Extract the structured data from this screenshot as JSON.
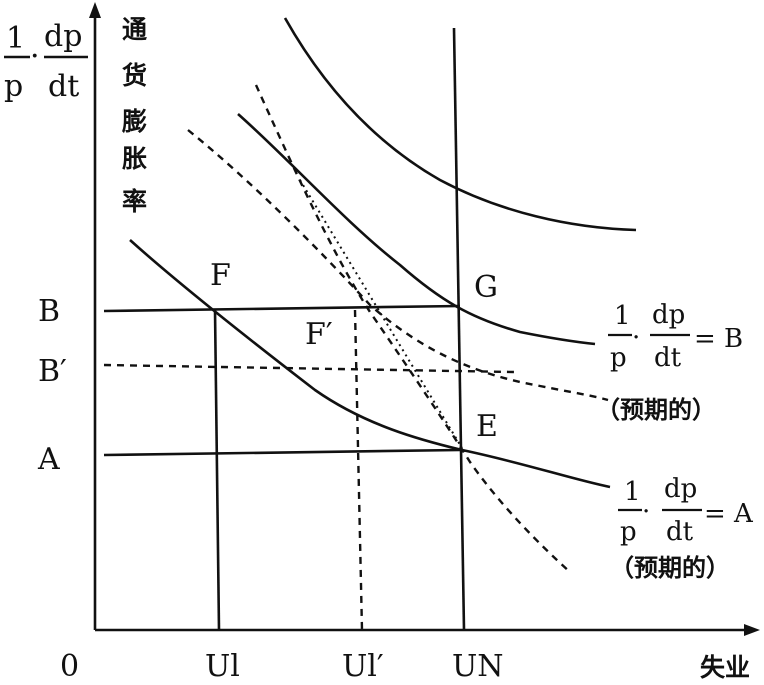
{
  "diagram": {
    "y_axis_label_fraction": {
      "num1": "1",
      "den1": "p",
      "dot": "·",
      "num2": "dp",
      "den2": "dt"
    },
    "y_axis_label_cn": [
      "通",
      "货",
      "膨",
      "胀",
      "率"
    ],
    "x_axis_label": "失业",
    "origin_label": "0",
    "y_ticks": [
      "B",
      "B′",
      "A"
    ],
    "x_ticks": [
      "Ul",
      "Ul′",
      "UN"
    ],
    "points": [
      "F",
      "G",
      "F′",
      "E"
    ],
    "curve_label_B": {
      "num": "1",
      "den": "p",
      "dot": "·",
      "dnum": "dp",
      "dden": "dt",
      "eq": "= B",
      "note": "（预期的）"
    },
    "curve_label_A": {
      "num": "1",
      "den": "p",
      "dot": "·",
      "dnum": "dp",
      "dden": "dt",
      "eq": "= A",
      "note": "（预期的）"
    }
  }
}
